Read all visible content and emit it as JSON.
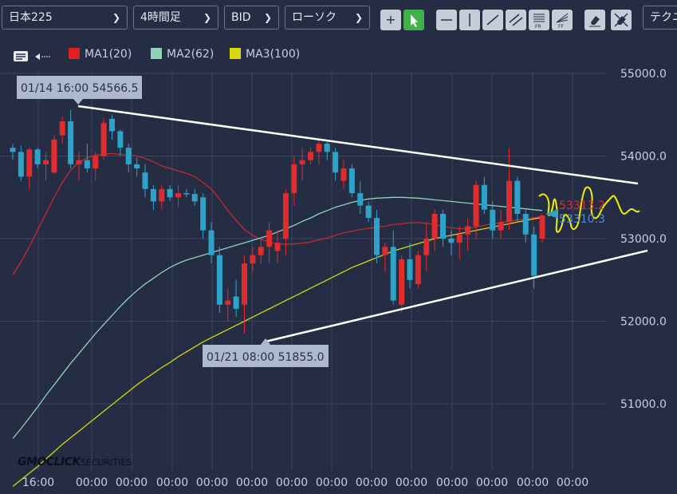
{
  "toolbar": {
    "symbol": "日本225",
    "timeframe": "4時間足",
    "price_type": "BID",
    "chart_style": "ローソク",
    "technical": "テクニ",
    "tools": [
      "crosshair-tool",
      "pointer-tool",
      "horizontal-line-tool",
      "vertical-line-tool",
      "trend-line-tool",
      "channel-tool",
      "fib-retracement-tool",
      "fib-fan-tool",
      "eraser-tool",
      "clear-all-tool"
    ]
  },
  "legend": [
    {
      "label": "MA1(20)",
      "color": "#e02020"
    },
    {
      "label": "MA2(62)",
      "color": "#8fd3b8"
    },
    {
      "label": "MA3(100)",
      "color": "#d8d80c"
    }
  ],
  "annotations": {
    "high": "01/14 16:00 54566.5",
    "low": "01/21 08:00 51855.0",
    "ma1_value": "53313.2",
    "ma2_value": "53310.3"
  },
  "logo": {
    "main": "GMOCLICK",
    "sub": "SECURITIES"
  },
  "colors": {
    "background": "#252d44",
    "grid": "#3a4360",
    "up": "#e02c2c",
    "down": "#2ea3c9",
    "ma1": "#c8282c",
    "ma2": "#8fd3b8",
    "ma3": "#d8d80c",
    "trendline": "#ffffff",
    "yellow_drawing": "#f0f000"
  },
  "chart_data": {
    "type": "candlestick",
    "y_ticks": [
      51000,
      52000,
      53000,
      54000,
      55000
    ],
    "y_tick_labels": [
      "51000.0",
      "52000.0",
      "53000.0",
      "54000.0",
      "55000.0"
    ],
    "ylim": [
      50000,
      55300
    ],
    "x_tick_labels": [
      "16:00",
      "00:00",
      "00:00",
      "00:00",
      "00:00",
      "00:00",
      "00:00",
      "00:00",
      "00:00",
      "00:00",
      "00:00",
      "00:00",
      "00:00",
      "00:00",
      "00:00"
    ],
    "candles": [
      [
        54100,
        54150,
        53950,
        54050
      ],
      [
        54050,
        54120,
        53700,
        53750
      ],
      [
        53750,
        54100,
        53600,
        54080
      ],
      [
        54080,
        54100,
        53850,
        53900
      ],
      [
        53900,
        54050,
        53700,
        53950
      ],
      [
        53800,
        54250,
        53780,
        54200
      ],
      [
        54250,
        54480,
        54150,
        54420
      ],
      [
        54420,
        54560,
        53850,
        53900
      ],
      [
        53900,
        54050,
        53700,
        53950
      ],
      [
        53950,
        54150,
        53800,
        53850
      ],
      [
        53850,
        54050,
        53700,
        54000
      ],
      [
        54000,
        54460,
        53950,
        54400
      ],
      [
        54450,
        54500,
        54200,
        54300
      ],
      [
        54300,
        54320,
        54000,
        54100
      ],
      [
        54100,
        54150,
        53800,
        53900
      ],
      [
        53900,
        53980,
        53750,
        53850
      ],
      [
        53800,
        53900,
        53500,
        53600
      ],
      [
        53600,
        53650,
        53350,
        53450
      ],
      [
        53450,
        53650,
        53350,
        53600
      ],
      [
        53600,
        53650,
        53450,
        53500
      ],
      [
        53500,
        53650,
        53380,
        53550
      ],
      [
        53550,
        53600,
        53500,
        53540
      ],
      [
        53540,
        53600,
        53400,
        53450
      ],
      [
        53500,
        53550,
        53000,
        53100
      ],
      [
        53100,
        53200,
        52700,
        52800
      ],
      [
        52800,
        52900,
        52100,
        52200
      ],
      [
        52200,
        52400,
        52000,
        52250
      ],
      [
        52300,
        52500,
        52050,
        52150
      ],
      [
        52200,
        52800,
        51855,
        52700
      ],
      [
        52700,
        52900,
        52600,
        52800
      ],
      [
        52800,
        53000,
        52700,
        52900
      ],
      [
        52900,
        53200,
        52700,
        53100
      ],
      [
        52850,
        53100,
        52700,
        52950
      ],
      [
        53000,
        53600,
        52800,
        53550
      ],
      [
        53550,
        54000,
        53400,
        53900
      ],
      [
        53900,
        54100,
        53700,
        53950
      ],
      [
        53950,
        54100,
        53900,
        54050
      ],
      [
        54050,
        54200,
        53900,
        54150
      ],
      [
        54150,
        54200,
        53950,
        54050
      ],
      [
        54050,
        54100,
        53700,
        53800
      ],
      [
        53700,
        53950,
        53600,
        53850
      ],
      [
        53850,
        53900,
        53500,
        53550
      ],
      [
        53550,
        53700,
        53300,
        53400
      ],
      [
        53400,
        53450,
        53200,
        53250
      ],
      [
        53250,
        53350,
        52700,
        52800
      ],
      [
        52800,
        52950,
        52600,
        52900
      ],
      [
        52900,
        53100,
        52200,
        52250
      ],
      [
        52200,
        52800,
        52100,
        52750
      ],
      [
        52750,
        52950,
        52400,
        52500
      ],
      [
        52450,
        52850,
        52400,
        52800
      ],
      [
        52800,
        53200,
        52600,
        53000
      ],
      [
        53000,
        53350,
        52850,
        53300
      ],
      [
        53300,
        53350,
        52900,
        53000
      ],
      [
        53000,
        53100,
        52800,
        52950
      ],
      [
        52950,
        53150,
        52750,
        53050
      ],
      [
        53050,
        53250,
        52850,
        53150
      ],
      [
        53150,
        53700,
        53000,
        53650
      ],
      [
        53650,
        53750,
        53300,
        53350
      ],
      [
        53350,
        53450,
        53000,
        53100
      ],
      [
        53100,
        53350,
        53000,
        53200
      ],
      [
        53200,
        54100,
        53100,
        53700
      ],
      [
        53700,
        53750,
        53200,
        53300
      ],
      [
        53300,
        53350,
        52950,
        53050
      ],
      [
        53050,
        53150,
        52400,
        52550
      ],
      [
        53000,
        53300,
        52950,
        53280
      ]
    ],
    "series": [
      {
        "name": "MA1(20)",
        "values": [
          52560,
          52720,
          52900,
          53100,
          53300,
          53500,
          53680,
          53830,
          53920,
          53980,
          54010,
          54020,
          54030,
          54020,
          54010,
          54000,
          53970,
          53930,
          53880,
          53850,
          53820,
          53790,
          53750,
          53680,
          53600,
          53480,
          53340,
          53220,
          53110,
          53040,
          52990,
          52960,
          52940,
          52930,
          52935,
          52945,
          52960,
          52985,
          53010,
          53040,
          53070,
          53090,
          53110,
          53125,
          53135,
          53150,
          53170,
          53180,
          53190,
          53195,
          53185,
          53170,
          53150,
          53130,
          53120,
          53125,
          53140,
          53160,
          53180,
          53195,
          53210,
          53225,
          53240,
          53255,
          53265
        ]
      },
      {
        "name": "MA2(62)",
        "values": [
          50580,
          50700,
          50830,
          50960,
          51100,
          51230,
          51360,
          51490,
          51610,
          51730,
          51850,
          51960,
          52070,
          52180,
          52280,
          52370,
          52450,
          52520,
          52590,
          52650,
          52700,
          52740,
          52770,
          52800,
          52830,
          52860,
          52890,
          52920,
          52950,
          52980,
          53010,
          53040,
          53080,
          53120,
          53160,
          53210,
          53250,
          53300,
          53340,
          53380,
          53410,
          53440,
          53460,
          53480,
          53490,
          53495,
          53500,
          53500,
          53495,
          53490,
          53480,
          53470,
          53460,
          53450,
          53440,
          53430,
          53420,
          53410,
          53400,
          53390,
          53380,
          53370,
          53360,
          53350,
          53340
        ]
      },
      {
        "name": "MA3(100)",
        "values": [
          50000,
          50080,
          50160,
          50240,
          50330,
          50420,
          50510,
          50590,
          50670,
          50750,
          50830,
          50910,
          50990,
          51070,
          51150,
          51230,
          51300,
          51370,
          51440,
          51500,
          51570,
          51630,
          51690,
          51750,
          51800,
          51850,
          51900,
          51950,
          52000,
          52050,
          52100,
          52150,
          52200,
          52250,
          52300,
          52350,
          52400,
          52450,
          52500,
          52550,
          52600,
          52650,
          52690,
          52730,
          52770,
          52810,
          52850,
          52880,
          52910,
          52940,
          52970,
          53000,
          53020,
          53040,
          53060,
          53080,
          53100,
          53120,
          53140,
          53160,
          53180,
          53200,
          53220,
          53240,
          53255
        ]
      }
    ]
  }
}
